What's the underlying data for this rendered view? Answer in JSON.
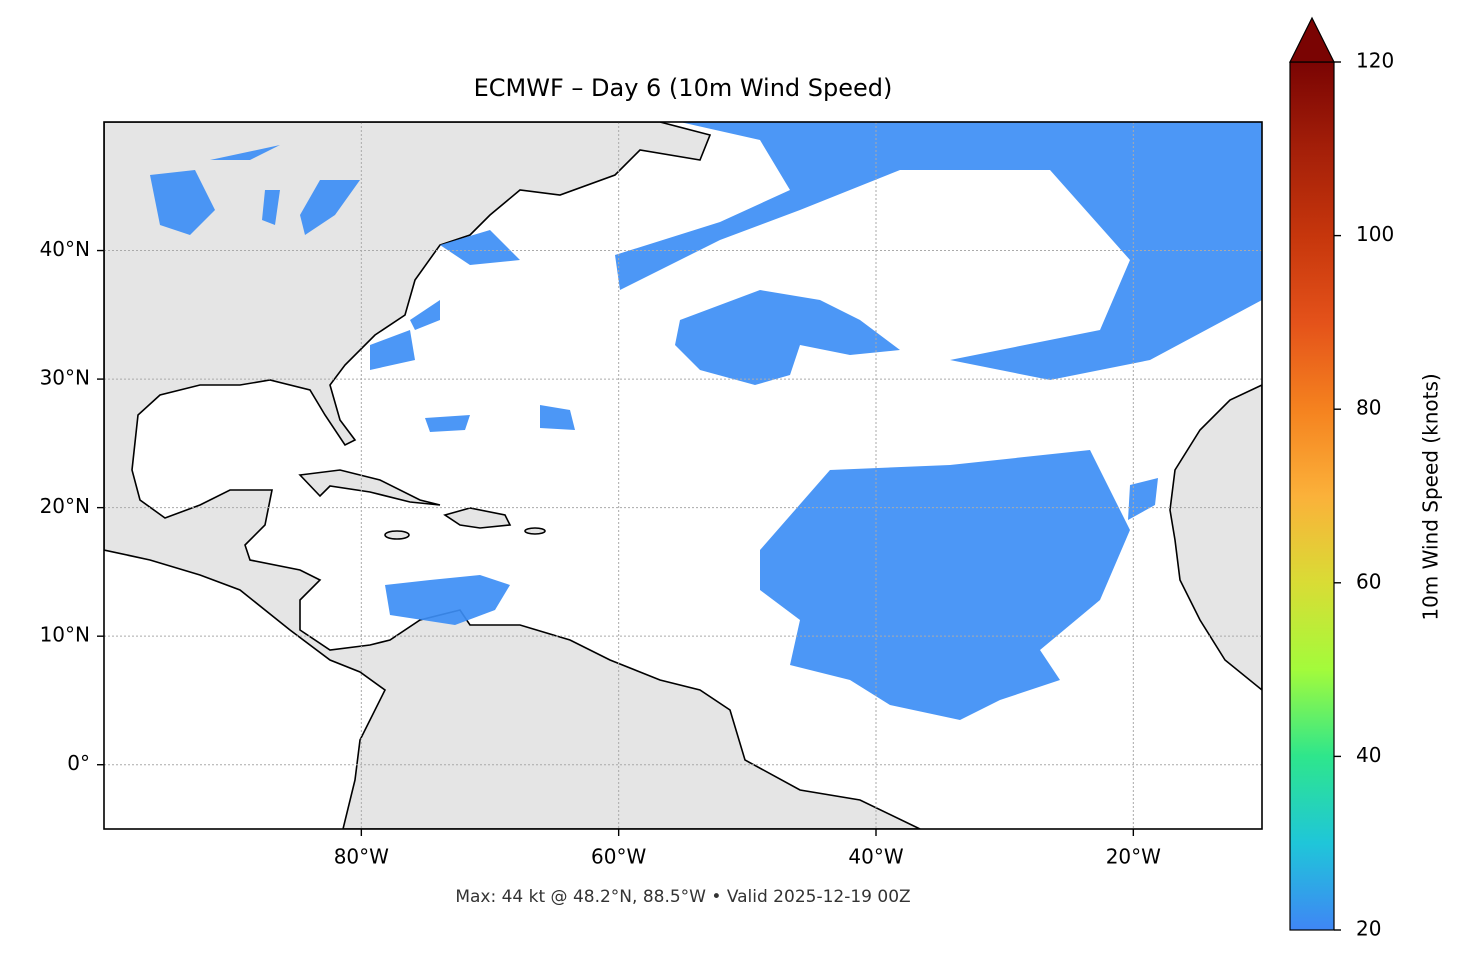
{
  "chart_data": {
    "type": "map",
    "title": "ECMWF – Day 6 (10m Wind Speed)",
    "footer": "Max: 44 kt @ 48.2°N, 88.5°W • Valid 2025-12-19 00Z",
    "xlim": [
      -100,
      -10
    ],
    "ylim": [
      -5,
      50
    ],
    "xticks": [
      {
        "value": -80,
        "label": "80°W"
      },
      {
        "value": -60,
        "label": "60°W"
      },
      {
        "value": -40,
        "label": "40°W"
      },
      {
        "value": -20,
        "label": "20°W"
      }
    ],
    "yticks": [
      {
        "value": 0,
        "label": "0°"
      },
      {
        "value": 10,
        "label": "10°N"
      },
      {
        "value": 20,
        "label": "20°N"
      },
      {
        "value": 30,
        "label": "30°N"
      },
      {
        "value": 40,
        "label": "40°N"
      }
    ],
    "grid": true,
    "colorbar": {
      "label": "10m Wind Speed (knots)",
      "lim": [
        20,
        120
      ],
      "ticks": [
        20,
        40,
        60,
        80,
        100,
        120
      ],
      "colormap": [
        "#3f86f5",
        "#1fc6d9",
        "#2ee68c",
        "#a3fb3b",
        "#d9dc35",
        "#fbb13a",
        "#f5821f",
        "#e4521a",
        "#c6360c",
        "#a41f09",
        "#7a0403"
      ]
    }
  }
}
